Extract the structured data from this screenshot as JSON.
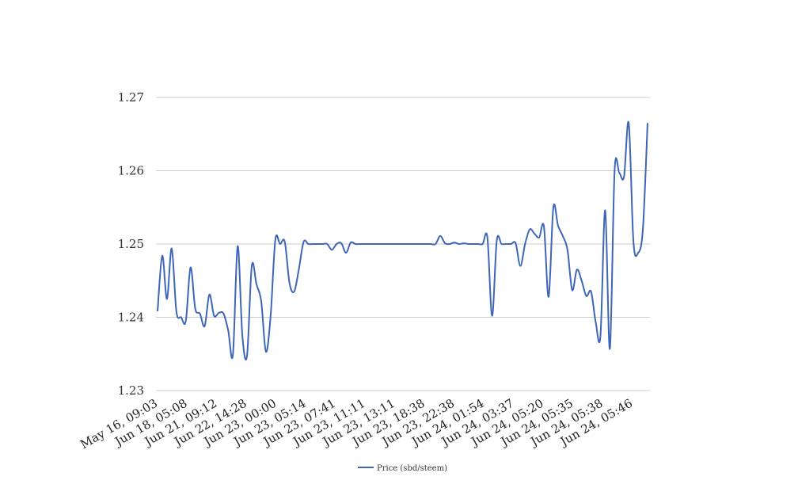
{
  "chart_data": {
    "type": "line",
    "title": "",
    "xlabel": "",
    "ylabel": "",
    "ylim": [
      1.23,
      1.27
    ],
    "yticks": [
      "1.23",
      "1.24",
      "1.25",
      "1.26",
      "1.27"
    ],
    "xticks": [
      "May 16, 09:03",
      "Jun 18, 05:08",
      "Jun 21, 09:12",
      "Jun 22, 14:28",
      "Jun 23, 00:00",
      "Jun 23, 05:14",
      "Jun 23, 07:41",
      "Jun 23, 11:11",
      "Jun 23, 13:11",
      "Jun 23, 18:38",
      "Jun 23, 22:38",
      "Jun 24, 01:54",
      "Jun 24, 03:37",
      "Jun 24, 05:20",
      "Jun 24, 05:35",
      "Jun 24, 05:38",
      "Jun 24, 05:46"
    ],
    "grid": true,
    "legend_position": "bottom",
    "series": [
      {
        "name": "Price (sbd/steem)",
        "color": "#3d66b8",
        "values": [
          1.2408,
          1.2484,
          1.2425,
          1.2494,
          1.2408,
          1.24,
          1.2395,
          1.2468,
          1.2412,
          1.2405,
          1.2388,
          1.2431,
          1.2402,
          1.2406,
          1.2405,
          1.2382,
          1.2349,
          1.2497,
          1.2375,
          1.2348,
          1.247,
          1.2445,
          1.2422,
          1.2353,
          1.2402,
          1.2506,
          1.25,
          1.2503,
          1.2447,
          1.2435,
          1.2466,
          1.2503,
          1.25,
          1.25,
          1.25,
          1.25,
          1.25,
          1.2492,
          1.25,
          1.2501,
          1.2488,
          1.2502,
          1.25,
          1.25,
          1.25,
          1.25,
          1.25,
          1.25,
          1.25,
          1.25,
          1.25,
          1.25,
          1.25,
          1.25,
          1.25,
          1.25,
          1.25,
          1.25,
          1.25,
          1.25,
          1.2511,
          1.2501,
          1.25,
          1.2502,
          1.25,
          1.2501,
          1.25,
          1.25,
          1.25,
          1.25,
          1.2509,
          1.2402,
          1.2505,
          1.25,
          1.25,
          1.25,
          1.2501,
          1.247,
          1.25,
          1.252,
          1.2514,
          1.2509,
          1.2524,
          1.2428,
          1.255,
          1.2525,
          1.2511,
          1.2492,
          1.2437,
          1.2465,
          1.245,
          1.2429,
          1.2435,
          1.2393,
          1.2375,
          1.2546,
          1.2357,
          1.26,
          1.2597,
          1.2592,
          1.2665,
          1.2503,
          1.2488,
          1.252,
          1.2665
        ]
      }
    ]
  }
}
